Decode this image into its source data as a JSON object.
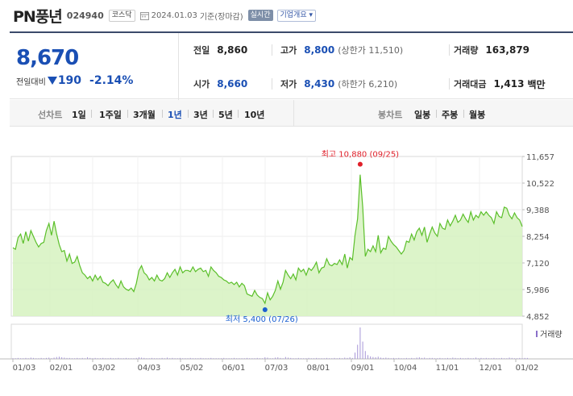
{
  "header": {
    "name": "PN풍년",
    "code": "024940",
    "market": "코스닥",
    "date": "2024.01.03",
    "basis": "기준(장마감)",
    "realtime": "실시간",
    "company_info": "기업개요"
  },
  "price": {
    "current": "8,670",
    "change_label": "전일대비",
    "change_amount": "190",
    "change_percent": "-2.14%",
    "direction": "down",
    "color": "#1a4fb4"
  },
  "info": {
    "prev_label": "전일",
    "prev_value": "8,860",
    "high_label": "고가",
    "high_value": "8,800",
    "upper_limit": "(상한가 11,510)",
    "volume_label": "거래량",
    "volume_value": "163,879",
    "open_label": "시가",
    "open_value": "8,660",
    "low_label": "저가",
    "low_value": "8,430",
    "lower_limit": "(하한가 6,210)",
    "amount_label": "거래대금",
    "amount_value": "1,413",
    "amount_unit": "백만"
  },
  "tabs": {
    "line_label": "선차트",
    "line_tabs": [
      "1일",
      "1주일",
      "3개월",
      "1년",
      "3년",
      "5년",
      "10년"
    ],
    "active": "1년",
    "candle_label": "봉차트",
    "candle_tabs": [
      "일봉",
      "주봉",
      "월봉"
    ]
  },
  "chart_data": {
    "type": "area",
    "yticks": [
      "11,657",
      "10,522",
      "9,388",
      "8,254",
      "7,120",
      "5,986",
      "4,852"
    ],
    "ylim": [
      4852,
      11657
    ],
    "xticks": [
      "01/03",
      "02/01",
      "03/02",
      "04/03",
      "05/02",
      "06/01",
      "07/03",
      "08/01",
      "09/01",
      "10/04",
      "11/01",
      "12/01",
      "01/02"
    ],
    "high_annotation": "최고 10,880 (09/25)",
    "low_annotation": "최저 5,400 (07/26)",
    "high_value": 10880,
    "low_value": 5400,
    "volume_legend": "거래량",
    "line_color": "#5bbf2a",
    "fill_color": "#d6f2c0",
    "high_color": "#e0202a",
    "low_color": "#1a5fd0",
    "series": [
      {
        "values": [
          7770,
          7700,
          8200,
          8350,
          7950,
          8450,
          8050,
          8500,
          8250,
          8000,
          7800,
          7950,
          8000,
          8500,
          8800,
          8300,
          8900,
          8350,
          7900,
          7600,
          7650,
          7200,
          7500,
          7100,
          7150,
          7400,
          7000,
          6700,
          6600,
          6450,
          6550,
          6350,
          6600,
          6400,
          6550,
          6300,
          6250,
          6150,
          6300,
          6400,
          6200,
          6050,
          6350,
          6100,
          6000,
          5950,
          6050,
          5900,
          6250,
          6800,
          7000,
          6700,
          6600,
          6400,
          6500,
          6350,
          6600,
          6400,
          6350,
          6450,
          6700,
          6500,
          6700,
          6850,
          6600,
          6950,
          6700,
          6800,
          6800,
          6750,
          6950,
          6750,
          6850,
          6900,
          6750,
          6800,
          6550,
          6950,
          6800,
          6700,
          6550,
          6500,
          6400,
          6350,
          6250,
          6300,
          6200,
          6300,
          6100,
          6250,
          6150,
          5800,
          5750,
          5700,
          5950,
          5750,
          5650,
          5600,
          5400,
          5850,
          5550,
          5700,
          5950,
          6350,
          6000,
          6300,
          6800,
          6600,
          6450,
          6650,
          6400,
          6900,
          6750,
          6850,
          6600,
          6900,
          6800,
          6950,
          7150,
          6700,
          6900,
          6950,
          7300,
          7050,
          7000,
          7100,
          7050,
          7250,
          7050,
          7500,
          6900,
          7350,
          7250,
          8300,
          9000,
          10880,
          9500,
          7400,
          7700,
          7600,
          7850,
          7600,
          8300,
          7550,
          7750,
          7700,
          8250,
          8050,
          7900,
          7800,
          7650,
          7500,
          7650,
          8050,
          8000,
          8350,
          8100,
          8450,
          8600,
          8300,
          8650,
          8000,
          8350,
          8650,
          8400,
          8250,
          8800,
          8600,
          8550,
          8950,
          8700,
          8900,
          9150,
          8850,
          8950,
          9200,
          9000,
          8850,
          9300,
          8950,
          9150,
          9050,
          9300,
          9150,
          9300,
          9150,
          9050,
          8800,
          9300,
          9100,
          9050,
          9500,
          9450,
          9150,
          9000,
          9250,
          9050,
          8950,
          8670
        ]
      }
    ],
    "volume": [
      0.02,
      0.02,
      0.03,
      0.02,
      0.02,
      0.03,
      0.02,
      0.04,
      0.03,
      0.02,
      0.02,
      0.03,
      0.02,
      0.03,
      0.04,
      0.02,
      0.04,
      0.06,
      0.07,
      0.05,
      0.04,
      0.03,
      0.03,
      0.02,
      0.02,
      0.03,
      0.02,
      0.03,
      0.02,
      0.05,
      0.03,
      0.02,
      0.03,
      0.02,
      0.02,
      0.03,
      0.02,
      0.02,
      0.03,
      0.02,
      0.02,
      0.03,
      0.02,
      0.02,
      0.03,
      0.02,
      0.02,
      0.02,
      0.03,
      0.05,
      0.04,
      0.03,
      0.02,
      0.02,
      0.03,
      0.02,
      0.02,
      0.02,
      0.03,
      0.02,
      0.04,
      0.02,
      0.03,
      0.02,
      0.02,
      0.03,
      0.02,
      0.02,
      0.02,
      0.03,
      0.02,
      0.02,
      0.02,
      0.03,
      0.02,
      0.02,
      0.02,
      0.03,
      0.02,
      0.02,
      0.02,
      0.02,
      0.03,
      0.02,
      0.02,
      0.02,
      0.03,
      0.02,
      0.02,
      0.02,
      0.02,
      0.03,
      0.02,
      0.02,
      0.02,
      0.03,
      0.02,
      0.02,
      0.05,
      0.04,
      0.02,
      0.02,
      0.04,
      0.05,
      0.03,
      0.02,
      0.06,
      0.04,
      0.03,
      0.02,
      0.02,
      0.03,
      0.02,
      0.02,
      0.02,
      0.03,
      0.02,
      0.02,
      0.03,
      0.02,
      0.02,
      0.02,
      0.03,
      0.02,
      0.02,
      0.03,
      0.02,
      0.03,
      0.02,
      0.04,
      0.03,
      0.05,
      0.03,
      0.2,
      0.45,
      1.0,
      0.55,
      0.25,
      0.12,
      0.08,
      0.06,
      0.05,
      0.07,
      0.04,
      0.03,
      0.04,
      0.03,
      0.02,
      0.03,
      0.02,
      0.03,
      0.02,
      0.02,
      0.03,
      0.02,
      0.03,
      0.02,
      0.04,
      0.05,
      0.03,
      0.04,
      0.02,
      0.03,
      0.03,
      0.02,
      0.02,
      0.03,
      0.02,
      0.02,
      0.03,
      0.02,
      0.04,
      0.03,
      0.02,
      0.03,
      0.02,
      0.02,
      0.03,
      0.02,
      0.02,
      0.04,
      0.02,
      0.03,
      0.02,
      0.03,
      0.02,
      0.02,
      0.03,
      0.02,
      0.02,
      0.03,
      0.02,
      0.02,
      0.04,
      0.03,
      0.02,
      0.02,
      0.03,
      0.02,
      0.03,
      0.03
    ]
  }
}
